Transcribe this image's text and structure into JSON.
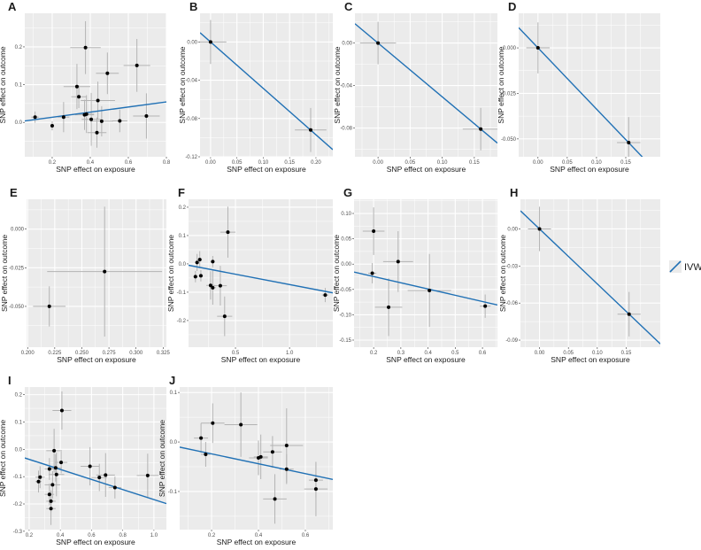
{
  "legend": {
    "label": "IVW",
    "line_color": "#2171b5"
  },
  "colors": {
    "panel_bg": "#ebebeb",
    "grid": "#ffffff",
    "point": "#000000",
    "errorbar": "#b3b3b3",
    "line": "#2171b5"
  },
  "chart_data": [
    {
      "panel": "A",
      "type": "scatter",
      "xlabel": "SNP effect on exposure",
      "ylabel": "SNP effect on outcome",
      "xlim": [
        0.056,
        0.8
      ],
      "ylim": [
        -0.091,
        0.289
      ],
      "xticks": [
        0.2,
        0.4,
        0.6,
        0.8
      ],
      "xtick_labels": [
        "0.2",
        "0.4",
        "0.6",
        "0.8"
      ],
      "yticks": [
        0,
        0.1,
        0.2
      ],
      "ytick_labels": [
        "0.0",
        "0.1",
        "0.2"
      ],
      "line": {
        "slope": 0.068,
        "intercept": 0
      },
      "points": [
        [
          0.11,
          0.014,
          0.02,
          0.015
        ],
        [
          0.2,
          -0.009,
          0.01,
          0.012
        ],
        [
          0.26,
          0.014,
          0.03,
          0.04
        ],
        [
          0.33,
          0.095,
          0.07,
          0.06
        ],
        [
          0.34,
          0.068,
          0.04,
          0.03
        ],
        [
          0.375,
          0.198,
          0.08,
          0.07
        ],
        [
          0.37,
          0.02,
          0.05,
          0.04
        ],
        [
          0.38,
          0.022,
          0.04,
          0.05
        ],
        [
          0.405,
          0.008,
          0.05,
          0.07
        ],
        [
          0.435,
          -0.027,
          0.05,
          0.04
        ],
        [
          0.44,
          0.058,
          0.09,
          0.05
        ],
        [
          0.46,
          0.003,
          0.06,
          0.04
        ],
        [
          0.49,
          0.13,
          0.06,
          0.055
        ],
        [
          0.555,
          0.004,
          0.04,
          0.03
        ],
        [
          0.645,
          0.151,
          0.07,
          0.07
        ],
        [
          0.695,
          0.017,
          0.07,
          0.06
        ]
      ]
    },
    {
      "panel": "B",
      "type": "scatter",
      "xlabel": "SNP effect on exposure",
      "ylabel": "SNP effect on outcome",
      "xlim": [
        -0.02,
        0.232
      ],
      "ylim": [
        -0.12,
        0.03
      ],
      "xticks": [
        0,
        0.05,
        0.1,
        0.15,
        0.2
      ],
      "xtick_labels": [
        "0.00",
        "0.05",
        "0.10",
        "0.15",
        "0.20"
      ],
      "yticks": [
        0,
        -0.04,
        -0.08,
        -0.12
      ],
      "ytick_labels": [
        "0.00",
        "-0.04",
        "-0.08",
        "-0.12"
      ],
      "line": {
        "slope": -0.485,
        "intercept": 0
      },
      "points": [
        [
          0,
          0,
          0.03,
          0.023
        ],
        [
          0.19,
          -0.092,
          0.03,
          0.023
        ]
      ]
    },
    {
      "panel": "C",
      "type": "scatter",
      "xlabel": "SNP effect on exposure",
      "ylabel": "SNP effect on outcome",
      "xlim": [
        -0.036,
        0.186
      ],
      "ylim": [
        -0.107,
        0.028
      ],
      "xticks": [
        0,
        0.05,
        0.1,
        0.15
      ],
      "xtick_labels": [
        "0.00",
        "0.05",
        "0.10",
        "0.15"
      ],
      "yticks": [
        0,
        -0.04,
        -0.08
      ],
      "ytick_labels": [
        "0.00",
        "-0.04",
        "-0.08"
      ],
      "line": {
        "slope": -0.506,
        "intercept": 0
      },
      "points": [
        [
          0,
          0,
          0.028,
          0.02
        ],
        [
          0.16,
          -0.081,
          0.028,
          0.02
        ]
      ]
    },
    {
      "panel": "D",
      "type": "scatter",
      "xlabel": "SNP effect on exposure",
      "ylabel": "SNP effect on outcome",
      "xlim": [
        -0.033,
        0.209
      ],
      "ylim": [
        -0.0598,
        0.019
      ],
      "xticks": [
        0,
        0.05,
        0.1,
        0.15
      ],
      "xtick_labels": [
        "0.00",
        "0.05",
        "0.10",
        "0.15"
      ],
      "yticks": [
        0,
        -0.025,
        -0.05
      ],
      "ytick_labels": [
        "0.000",
        "-0.025",
        "-0.050"
      ],
      "line": {
        "slope": -0.336,
        "intercept": 0
      },
      "points": [
        [
          0,
          0,
          0.02,
          0.014
        ],
        [
          0.155,
          -0.052,
          0.02,
          0.014
        ]
      ]
    },
    {
      "panel": "E",
      "type": "scatter",
      "xlabel": "SNP effect on exposure",
      "ylabel": "SNP effect on outcome",
      "xlim": [
        0.199,
        0.328
      ],
      "ylim": [
        -0.0764,
        0.0193
      ],
      "xticks": [
        0.2,
        0.225,
        0.25,
        0.275,
        0.3,
        0.325
      ],
      "xtick_labels": [
        "0.200",
        "0.225",
        "0.250",
        "0.275",
        "0.300",
        "0.325"
      ],
      "yticks": [
        0,
        -0.025,
        -0.05
      ],
      "ytick_labels": [
        "0.000",
        "-0.025",
        "-0.050"
      ],
      "line": null,
      "points": [
        [
          0.22,
          -0.05,
          0.015,
          0.013
        ],
        [
          0.271,
          -0.0275,
          0.053,
          0.042
        ]
      ]
    },
    {
      "panel": "F",
      "type": "scatter",
      "xlabel": "SNP effect on exposure",
      "ylabel": "SNP effect on outcome",
      "xlim": [
        0.066,
        1.4
      ],
      "ylim": [
        -0.294,
        0.228
      ],
      "xticks": [
        0.5,
        1.0
      ],
      "xtick_labels": [
        "0.5",
        "1.0"
      ],
      "yticks": [
        0.2,
        0.1,
        0,
        -0.1,
        -0.2
      ],
      "ytick_labels": [
        "0.2",
        "0.1",
        "0.0",
        "-0.1",
        "-0.2"
      ],
      "line": {
        "slope": -0.073,
        "intercept": 0
      },
      "points": [
        [
          0.13,
          -0.045,
          0.02,
          0.02
        ],
        [
          0.145,
          0.005,
          0.02,
          0.03
        ],
        [
          0.17,
          0.015,
          0.02,
          0.03
        ],
        [
          0.18,
          -0.042,
          0.02,
          0.02
        ],
        [
          0.29,
          0.008,
          0.02,
          0.02
        ],
        [
          0.27,
          -0.076,
          0.04,
          0.05
        ],
        [
          0.29,
          -0.084,
          0.03,
          0.06
        ],
        [
          0.36,
          -0.077,
          0.06,
          0.07
        ],
        [
          0.4,
          -0.185,
          0.07,
          0.07
        ],
        [
          0.43,
          0.112,
          0.07,
          0.09
        ],
        [
          1.33,
          -0.11,
          0.03,
          0.025
        ]
      ]
    },
    {
      "panel": "G",
      "type": "scatter",
      "xlabel": "SNP effect on exposure",
      "ylabel": "SNP effect on outcome",
      "xlim": [
        0.128,
        0.655
      ],
      "ylim": [
        -0.164,
        0.128
      ],
      "xticks": [
        0.2,
        0.3,
        0.4,
        0.5,
        0.6
      ],
      "xtick_labels": [
        "0.2",
        "0.3",
        "0.4",
        "0.5",
        "0.6"
      ],
      "yticks": [
        0.1,
        0.05,
        0,
        -0.05,
        -0.1,
        -0.15
      ],
      "ytick_labels": [
        "0.10",
        "0.05",
        "0.00",
        "-0.05",
        "-0.10",
        "-0.15"
      ],
      "line": {
        "slope": -0.123,
        "intercept": 0
      },
      "points": [
        [
          0.2,
          0.065,
          0.04,
          0.047
        ],
        [
          0.195,
          -0.018,
          0.015,
          0.02
        ],
        [
          0.29,
          0.005,
          0.055,
          0.06
        ],
        [
          0.255,
          -0.085,
          0.05,
          0.057
        ],
        [
          0.405,
          -0.052,
          0.08,
          0.072
        ],
        [
          0.61,
          -0.083,
          0.02,
          0.023
        ]
      ]
    },
    {
      "panel": "H",
      "type": "scatter",
      "xlabel": "SNP effect on exposure",
      "ylabel": "SNP effect on outcome",
      "xlim": [
        -0.033,
        0.209
      ],
      "ylim": [
        -0.0957,
        0.024
      ],
      "xticks": [
        0,
        0.05,
        0.1,
        0.15
      ],
      "xtick_labels": [
        "0.00",
        "0.05",
        "0.10",
        "0.15"
      ],
      "yticks": [
        0,
        -0.03,
        -0.06,
        -0.09
      ],
      "ytick_labels": [
        "0.00",
        "-0.03",
        "-0.06",
        "-0.09"
      ],
      "line": {
        "slope": -0.445,
        "intercept": 0
      },
      "points": [
        [
          0,
          0,
          0.02,
          0.018
        ],
        [
          0.155,
          -0.069,
          0.02,
          0.018
        ]
      ]
    },
    {
      "panel": "I",
      "type": "scatter",
      "xlabel": "SNP effect on exposure",
      "ylabel": "SNP effect on outcome",
      "xlim": [
        0.172,
        1.08
      ],
      "ylim": [
        -0.294,
        0.228
      ],
      "xticks": [
        0.2,
        0.4,
        0.6,
        0.8,
        1.0
      ],
      "xtick_labels": [
        "0.2",
        "0.4",
        "0.6",
        "0.8",
        "1.0"
      ],
      "yticks": [
        0.2,
        0.1,
        0,
        -0.1,
        -0.2,
        -0.3
      ],
      "ytick_labels": [
        "0.2",
        "0.1",
        "0.0",
        "-0.1",
        "-0.2",
        "-0.3"
      ],
      "line": {
        "slope": -0.184,
        "intercept": 0
      },
      "points": [
        [
          0.26,
          -0.118,
          0.02,
          0.04
        ],
        [
          0.27,
          -0.102,
          0.03,
          0.04
        ],
        [
          0.33,
          -0.072,
          0.03,
          0.04
        ],
        [
          0.33,
          -0.165,
          0.03,
          0.04
        ],
        [
          0.34,
          -0.19,
          0.03,
          0.04
        ],
        [
          0.34,
          -0.217,
          0.03,
          0.06
        ],
        [
          0.35,
          -0.13,
          0.05,
          0.05
        ],
        [
          0.36,
          -0.005,
          0.05,
          0.08
        ],
        [
          0.37,
          -0.068,
          0.04,
          0.05
        ],
        [
          0.375,
          -0.092,
          0.05,
          0.08
        ],
        [
          0.405,
          -0.048,
          0.04,
          0.04
        ],
        [
          0.41,
          0.142,
          0.06,
          0.07
        ],
        [
          0.59,
          -0.062,
          0.06,
          0.07
        ],
        [
          0.65,
          -0.103,
          0.05,
          0.05
        ],
        [
          0.69,
          -0.094,
          0.06,
          0.08
        ],
        [
          0.75,
          -0.14,
          0.04,
          0.04
        ],
        [
          0.96,
          -0.096,
          0.07,
          0.08
        ]
      ]
    },
    {
      "panel": "J",
      "type": "scatter",
      "xlabel": "SNP effect on exposure",
      "ylabel": "SNP effect on outcome",
      "xlim": [
        0.064,
        0.717
      ],
      "ylim": [
        -0.177,
        0.111
      ],
      "xticks": [
        0.2,
        0.4,
        0.6
      ],
      "xtick_labels": [
        "0.2",
        "0.4",
        "0.6"
      ],
      "yticks": [
        0.1,
        0,
        -0.1
      ],
      "ytick_labels": [
        "0.1",
        "0.0",
        "-0.1"
      ],
      "line": {
        "slope": -0.1,
        "intercept": -0.004
      },
      "points": [
        [
          0.155,
          0.008,
          0.03,
          0.03
        ],
        [
          0.175,
          -0.025,
          0.02,
          0.025
        ],
        [
          0.205,
          0.038,
          0.05,
          0.04
        ],
        [
          0.325,
          0.035,
          0.07,
          0.065
        ],
        [
          0.4,
          -0.032,
          0.04,
          0.035
        ],
        [
          0.41,
          -0.03,
          0.03,
          0.045
        ],
        [
          0.46,
          -0.02,
          0.04,
          0.032
        ],
        [
          0.47,
          -0.115,
          0.05,
          0.05
        ],
        [
          0.52,
          -0.007,
          0.07,
          0.075
        ],
        [
          0.52,
          -0.055,
          0.03,
          0.03
        ],
        [
          0.645,
          -0.077,
          0.03,
          0.035
        ],
        [
          0.645,
          -0.095,
          0.05,
          0.055
        ]
      ]
    }
  ]
}
